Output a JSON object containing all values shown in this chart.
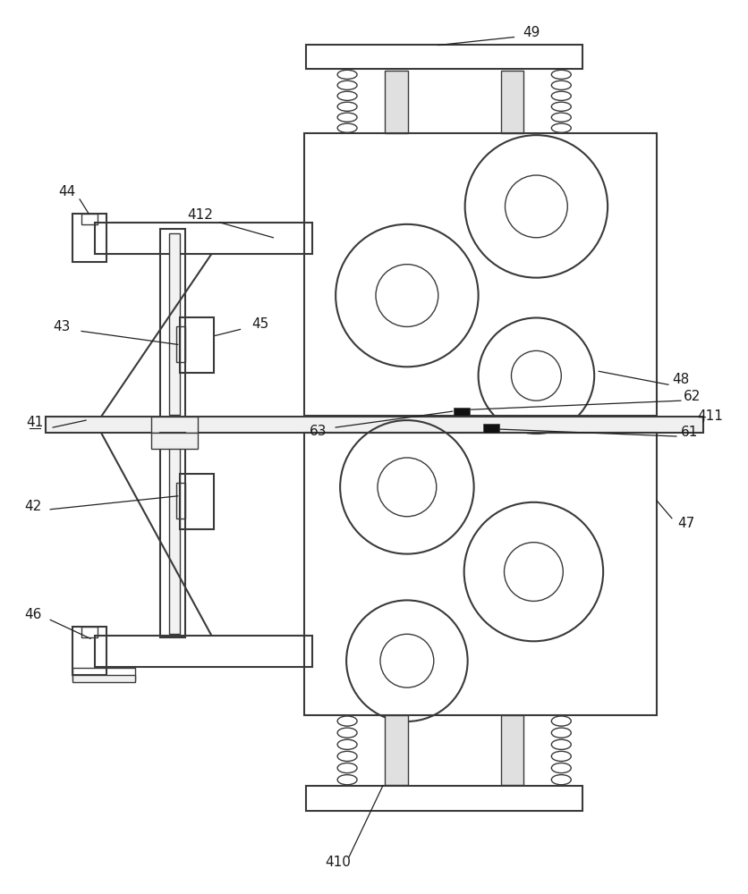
{
  "bg_color": "#ffffff",
  "lc": "#3a3a3a",
  "lw": 1.5,
  "lwt": 1.0,
  "lwa": 0.9,
  "fs": 11,
  "fig_w": 8.37,
  "fig_h": 10.0
}
